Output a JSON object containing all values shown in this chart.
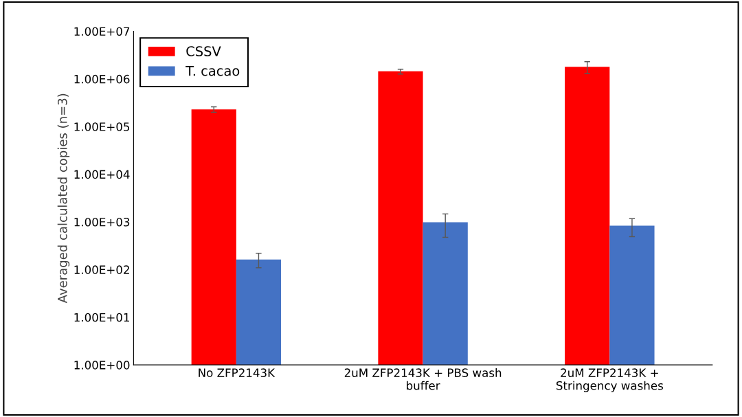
{
  "chart_data": {
    "type": "bar",
    "ylabel": "Averaged calculated copies (n=3)",
    "categories": [
      "No ZFP2143K",
      "2uM ZFP2143K + PBS wash\nbuffer",
      "2uM ZFP2143K +\nStringency washes"
    ],
    "series": [
      {
        "name": "CSSV",
        "color": "#ff0000",
        "values": [
          230000,
          1450000,
          1800000
        ],
        "errors": [
          [
            200000,
            260000
          ],
          [
            1270000,
            1600000
          ],
          [
            1300000,
            2300000
          ]
        ]
      },
      {
        "name": "T. cacao",
        "color": "#4472c4",
        "values": [
          163,
          980,
          830
        ],
        "errors": [
          [
            109,
            220
          ],
          [
            475,
            1470
          ],
          [
            490,
            1170
          ]
        ]
      }
    ],
    "log": true,
    "ylim": [
      1,
      10000000
    ],
    "yticks": [
      {
        "value": 1,
        "label": "1.00E+00"
      },
      {
        "value": 10,
        "label": "1.00E+01"
      },
      {
        "value": 100,
        "label": "1.00E+02"
      },
      {
        "value": 1000,
        "label": "1.00E+03"
      },
      {
        "value": 10000,
        "label": "1.00E+04"
      },
      {
        "value": 100000,
        "label": "1.00E+05"
      },
      {
        "value": 1000000,
        "label": "1.00E+06"
      },
      {
        "value": 10000000,
        "label": "1.00E+07"
      }
    ],
    "grid": false,
    "legend": "top left"
  }
}
